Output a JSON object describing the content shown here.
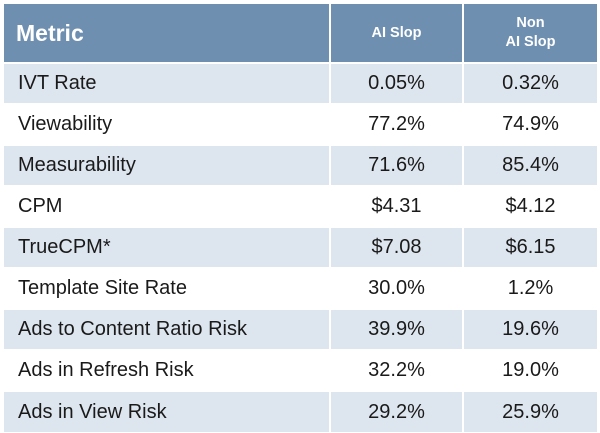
{
  "table": {
    "headers": {
      "metric": "Metric",
      "ai_slop": "AI Slop",
      "non_ai_slop_line1": "Non",
      "non_ai_slop_line2": "AI Slop"
    },
    "rows": [
      {
        "metric": "IVT Rate",
        "ai_slop": "0.05%",
        "non_ai_slop": "0.32%"
      },
      {
        "metric": "Viewability",
        "ai_slop": "77.2%",
        "non_ai_slop": "74.9%"
      },
      {
        "metric": "Measurability",
        "ai_slop": "71.6%",
        "non_ai_slop": "85.4%"
      },
      {
        "metric": "CPM",
        "ai_slop": "$4.31",
        "non_ai_slop": "$4.12"
      },
      {
        "metric": "TrueCPM*",
        "ai_slop": "$7.08",
        "non_ai_slop": "$6.15"
      },
      {
        "metric": "Template Site Rate",
        "ai_slop": "30.0%",
        "non_ai_slop": "1.2%"
      },
      {
        "metric": "Ads to Content Ratio Risk",
        "ai_slop": "39.9%",
        "non_ai_slop": "19.6%"
      },
      {
        "metric": "Ads in Refresh Risk",
        "ai_slop": "32.2%",
        "non_ai_slop": "19.0%"
      },
      {
        "metric": "Ads in View Risk",
        "ai_slop": "29.2%",
        "non_ai_slop": "25.9%"
      }
    ]
  },
  "colors": {
    "header_background": "#6f8fb0",
    "header_text": "#ffffff",
    "shaded_row": "#dde5ee",
    "plain_row": "#ffffff",
    "body_text": "#1a1a1a"
  }
}
